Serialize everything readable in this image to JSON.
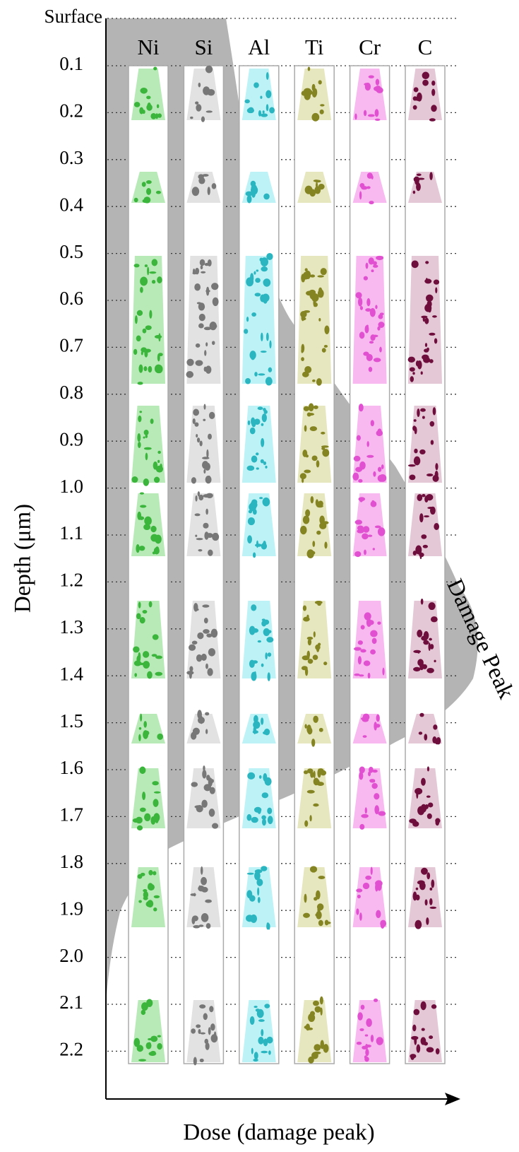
{
  "axis": {
    "top_label": "Surface",
    "ticks": [
      "0.1",
      "0.2",
      "0.3",
      "0.4",
      "0.5",
      "0.6",
      "0.7",
      "0.8",
      "0.9",
      "1.0",
      "1.1",
      "1.2",
      "1.3",
      "1.4",
      "1.5",
      "1.6",
      "1.7",
      "1.8",
      "1.9",
      "2.0",
      "2.1",
      "2.2"
    ],
    "y_title": "Depth (μm)",
    "x_title": "Dose (damage peak)"
  },
  "columns": [
    "Ni",
    "Si",
    "Al",
    "Ti",
    "Cr",
    "C"
  ],
  "annotation": "Damage Peak"
}
